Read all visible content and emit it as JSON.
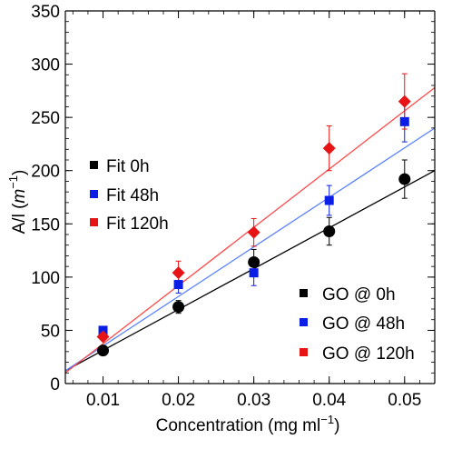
{
  "chart_data": {
    "type": "scatter",
    "xlabel": "Concentration (mg ml",
    "xlabel_sup": "−1",
    "xlabel_close": ")",
    "ylabel": "A/l (",
    "ylabel_unit": "m",
    "ylabel_sup": "−1",
    "ylabel_close": ")",
    "xlim": [
      0.005,
      0.054
    ],
    "ylim": [
      0,
      350
    ],
    "x_ticks": [
      {
        "value": 0.01,
        "label": "0.01"
      },
      {
        "value": 0.02,
        "label": "0.02"
      },
      {
        "value": 0.03,
        "label": "0.03"
      },
      {
        "value": 0.04,
        "label": "0.04"
      },
      {
        "value": 0.05,
        "label": "0.05"
      }
    ],
    "y_ticks": [
      {
        "value": 0,
        "label": "0"
      },
      {
        "value": 50,
        "label": "50"
      },
      {
        "value": 100,
        "label": "100"
      },
      {
        "value": 150,
        "label": "150"
      },
      {
        "value": 200,
        "label": "200"
      },
      {
        "value": 250,
        "label": "250"
      },
      {
        "value": 300,
        "label": "300"
      },
      {
        "value": 350,
        "label": "350"
      }
    ],
    "x_minor_step": 0.002,
    "y_minor_step": 10,
    "grid": false,
    "legend_fits_placement": "upper-left",
    "legend_data_placement": "lower-right",
    "series": [
      {
        "name": "GO @ 0h",
        "marker": "circle",
        "color": "#000000",
        "x": [
          0.01,
          0.02,
          0.03,
          0.04,
          0.05
        ],
        "y": [
          31,
          72,
          114,
          143,
          192
        ],
        "err": [
          4,
          6,
          12,
          13,
          18
        ]
      },
      {
        "name": "GO @ 48h",
        "marker": "square",
        "color": "#0a1ee6",
        "x": [
          0.01,
          0.02,
          0.03,
          0.04,
          0.05
        ],
        "y": [
          50,
          93,
          104,
          172,
          246
        ],
        "err": [
          3,
          8,
          12,
          14,
          19
        ]
      },
      {
        "name": "GO @ 120h",
        "marker": "diamond",
        "color": "#e61414",
        "x": [
          0.01,
          0.02,
          0.03,
          0.04,
          0.05
        ],
        "y": [
          44,
          104,
          142,
          221,
          265
        ],
        "err": [
          3,
          11,
          13,
          21,
          26
        ]
      }
    ],
    "fits": [
      {
        "name": "Fit 0h",
        "color": "#000000",
        "y_at_xmin": 12,
        "y_at_xmax": 200
      },
      {
        "name": "Fit 48h",
        "color": "#5a82ff",
        "y_at_xmin": 12,
        "y_at_xmax": 240
      },
      {
        "name": "Fit 120h",
        "color": "#ff4b4b",
        "y_at_xmin": 10,
        "y_at_xmax": 278
      }
    ]
  }
}
